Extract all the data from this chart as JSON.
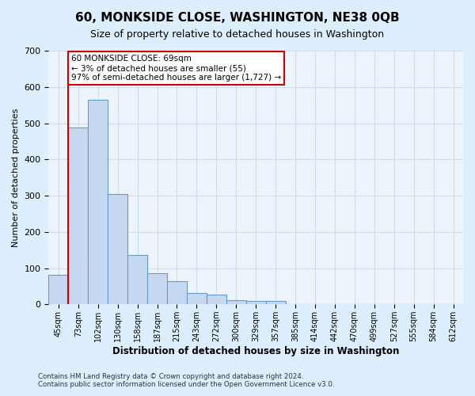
{
  "title": "60, MONKSIDE CLOSE, WASHINGTON, NE38 0QB",
  "subtitle": "Size of property relative to detached houses in Washington",
  "xlabel": "Distribution of detached houses by size in Washington",
  "ylabel": "Number of detached properties",
  "footer_line1": "Contains HM Land Registry data © Crown copyright and database right 2024.",
  "footer_line2": "Contains public sector information licensed under the Open Government Licence v3.0.",
  "annotation_line1": "60 MONKSIDE CLOSE: 69sqm",
  "annotation_line2": "← 3% of detached houses are smaller (55)",
  "annotation_line3": "97% of semi-detached houses are larger (1,727) →",
  "bar_values": [
    82,
    488,
    565,
    305,
    137,
    85,
    63,
    32,
    27,
    12,
    10,
    10,
    0,
    0,
    0,
    0,
    0,
    0,
    0,
    0,
    0
  ],
  "categories": [
    "45sqm",
    "73sqm",
    "102sqm",
    "130sqm",
    "158sqm",
    "187sqm",
    "215sqm",
    "243sqm",
    "272sqm",
    "300sqm",
    "329sqm",
    "357sqm",
    "385sqm",
    "414sqm",
    "442sqm",
    "470sqm",
    "499sqm",
    "527sqm",
    "555sqm",
    "584sqm",
    "612sqm"
  ],
  "bar_color": "#c6d9f0",
  "bar_edge_color": "#6699cc",
  "vline_color": "#cc0000",
  "annotation_box_color": "#cc0000",
  "annotation_box_bg": "#ffffff",
  "ylim": [
    0,
    700
  ],
  "yticks": [
    0,
    100,
    200,
    300,
    400,
    500,
    600,
    700
  ],
  "grid_color": "#ccddee",
  "background_color": "#ddeeff",
  "plot_bg_color": "#eef4fc"
}
